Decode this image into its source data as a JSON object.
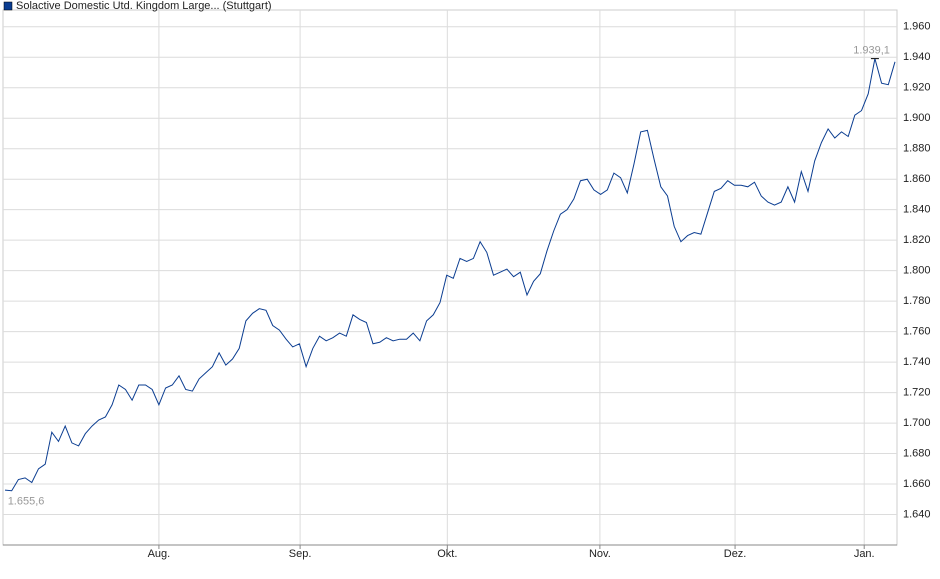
{
  "chart_data": {
    "type": "line",
    "series": [
      {
        "name": "Solactive Domestic Utd. Kingdom Large... (Stuttgart)",
        "color": "#0b3d91",
        "values": [
          1656,
          1655.6,
          1663,
          1664,
          1661,
          1670,
          1673,
          1694,
          1688,
          1698,
          1687,
          1685,
          1693,
          1698,
          1702,
          1704,
          1712,
          1725,
          1722,
          1715,
          1725,
          1725,
          1722,
          1712,
          1723,
          1725,
          1731,
          1722,
          1721,
          1729,
          1733,
          1737,
          1746,
          1738,
          1742,
          1749,
          1767,
          1772,
          1775,
          1774,
          1764,
          1761,
          1755,
          1750,
          1752,
          1737,
          1749,
          1757,
          1754,
          1756,
          1759,
          1757,
          1771,
          1768,
          1766,
          1752,
          1753,
          1756,
          1754,
          1755,
          1755,
          1759,
          1754,
          1767,
          1771,
          1779,
          1797,
          1795,
          1808,
          1806,
          1808,
          1819,
          1812,
          1797,
          1799,
          1801,
          1796,
          1799,
          1784,
          1793,
          1798,
          1813,
          1826,
          1837,
          1840,
          1847,
          1859,
          1860,
          1853,
          1850,
          1853,
          1864,
          1861,
          1851,
          1870,
          1891,
          1892,
          1873,
          1855,
          1849,
          1829,
          1819,
          1823,
          1825,
          1824,
          1838,
          1852,
          1854,
          1859,
          1856,
          1856,
          1855,
          1858,
          1849,
          1845,
          1843,
          1845,
          1855,
          1845,
          1865,
          1852,
          1872,
          1884,
          1893,
          1887,
          1891,
          1888,
          1902,
          1905,
          1916,
          1939.1,
          1923,
          1922,
          1937
        ],
        "value_labels": [
          null,
          "1.655,6",
          null,
          null,
          null,
          null,
          null,
          null,
          null,
          null,
          null,
          null,
          null,
          null,
          null,
          null,
          null,
          null,
          null,
          null,
          null,
          null,
          null,
          null,
          null,
          null,
          null,
          null,
          null,
          null,
          null,
          null,
          null,
          null,
          null,
          null,
          null,
          null,
          null,
          null,
          null,
          null,
          null,
          null,
          null,
          null,
          null,
          null,
          null,
          null,
          null,
          null,
          null,
          null,
          null,
          null,
          null,
          null,
          null,
          null,
          null,
          null,
          null,
          null,
          null,
          null,
          null,
          null,
          null,
          null,
          null,
          null,
          null,
          null,
          null,
          null,
          null,
          null,
          null,
          null,
          null,
          null,
          null,
          null,
          null,
          null,
          null,
          null,
          null,
          null,
          null,
          null,
          null,
          null,
          null,
          null,
          null,
          null,
          null,
          null,
          null,
          null,
          null,
          null,
          null,
          null,
          null,
          null,
          null,
          null,
          null,
          null,
          null,
          null,
          null,
          null,
          null,
          null,
          null,
          null,
          null,
          null,
          null,
          null,
          null,
          null,
          null,
          null,
          null,
          null,
          "1.939,1",
          null,
          null,
          null
        ]
      }
    ],
    "xlim": [
      -0.3,
      133.3
    ],
    "xticks": [
      {
        "value": 23,
        "label": "Aug."
      },
      {
        "value": 44.1,
        "label": "Sep."
      },
      {
        "value": 66.1,
        "label": "Okt."
      },
      {
        "value": 88.9,
        "label": "Nov."
      },
      {
        "value": 109.1,
        "label": "Dez."
      },
      {
        "value": 128.4,
        "label": "Jan."
      }
    ],
    "ylim": [
      1620,
      1971
    ],
    "yticks": [
      {
        "value": 1640,
        "label": "1.640"
      },
      {
        "value": 1660,
        "label": "1.660"
      },
      {
        "value": 1680,
        "label": "1.680"
      },
      {
        "value": 1700,
        "label": "1.700"
      },
      {
        "value": 1720,
        "label": "1.720"
      },
      {
        "value": 1740,
        "label": "1.740"
      },
      {
        "value": 1760,
        "label": "1.760"
      },
      {
        "value": 1780,
        "label": "1.780"
      },
      {
        "value": 1800,
        "label": "1.800"
      },
      {
        "value": 1820,
        "label": "1.820"
      },
      {
        "value": 1840,
        "label": "1.840"
      },
      {
        "value": 1860,
        "label": "1.860"
      },
      {
        "value": 1880,
        "label": "1.880"
      },
      {
        "value": 1900,
        "label": "1.900"
      },
      {
        "value": 1920,
        "label": "1.920"
      },
      {
        "value": 1940,
        "label": "1.940"
      },
      {
        "value": 1960,
        "label": "1.960"
      }
    ],
    "grid": true
  }
}
